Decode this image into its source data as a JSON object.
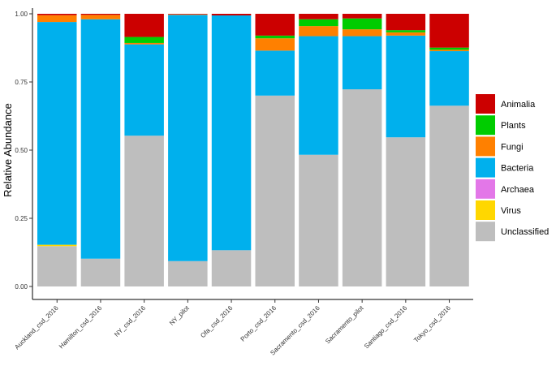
{
  "chart_data": {
    "type": "bar",
    "stacked": true,
    "title": "",
    "xlabel": "",
    "ylabel": "Relative Abundance",
    "ylim": [
      0,
      1
    ],
    "y_ticks": [
      "0.00",
      "0.25",
      "0.50",
      "0.75",
      "1.00"
    ],
    "grid": false,
    "legend_position": "right",
    "categories": [
      "Auckland_csd_2016",
      "Hamilton_csd_2016",
      "NY_csd_2016",
      "NY_pilot",
      "Ofa_csd_2016",
      "Porto_csd_2016",
      "Sacramento_csd_2016",
      "Sacramento_pilot",
      "Santiago_csd_2016",
      "Tokyo_csd_2016"
    ],
    "series": [
      {
        "name": "Unclassified",
        "color": "#bebebe",
        "values": [
          0.148,
          0.102,
          0.553,
          0.093,
          0.133,
          0.7,
          0.483,
          0.723,
          0.547,
          0.663
        ]
      },
      {
        "name": "Virus",
        "color": "#ffd700",
        "values": [
          0.005,
          0.0,
          0.0,
          0.0,
          0.0,
          0.0,
          0.0,
          0.0,
          0.0,
          0.0
        ]
      },
      {
        "name": "Archaea",
        "color": "#e377e8",
        "values": [
          0.0,
          0.0,
          0.0,
          0.0,
          0.0,
          0.0,
          0.0,
          0.0,
          0.0,
          0.0
        ]
      },
      {
        "name": "Bacteria",
        "color": "#00b0ed",
        "values": [
          0.817,
          0.878,
          0.335,
          0.903,
          0.861,
          0.165,
          0.435,
          0.195,
          0.373,
          0.2
        ]
      },
      {
        "name": "Fungi",
        "color": "#ff8000",
        "values": [
          0.025,
          0.016,
          0.005,
          0.002,
          0.0,
          0.045,
          0.037,
          0.025,
          0.012,
          0.005
        ]
      },
      {
        "name": "Plants",
        "color": "#00cc00",
        "values": [
          0.0,
          0.0,
          0.022,
          0.0,
          0.0,
          0.01,
          0.025,
          0.04,
          0.008,
          0.008
        ]
      },
      {
        "name": "Animalia",
        "color": "#cc0000",
        "values": [
          0.005,
          0.004,
          0.085,
          0.002,
          0.006,
          0.08,
          0.02,
          0.017,
          0.06,
          0.124
        ]
      }
    ],
    "legend_order": [
      "Animalia",
      "Plants",
      "Fungi",
      "Bacteria",
      "Archaea",
      "Virus",
      "Unclassified"
    ]
  }
}
